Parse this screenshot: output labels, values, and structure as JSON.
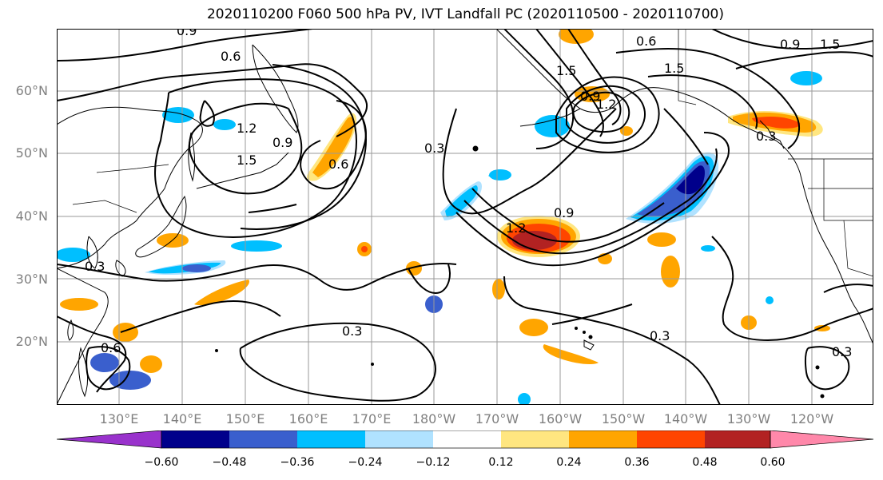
{
  "title": "2020110200 F060 500 hPa PV, IVT Landfall PC (2020110500 - 2020110700)",
  "lat_labels": [
    "60°N",
    "50°N",
    "40°N",
    "30°N",
    "20°N"
  ],
  "lon_labels": [
    "130°E",
    "140°E",
    "150°E",
    "160°E",
    "170°E",
    "180°W",
    "170°W",
    "160°W",
    "150°W",
    "140°W",
    "130°W",
    "120°W"
  ],
  "contour_labels": [
    "0.9",
    "0.6",
    "0.6",
    "1.5",
    "0.9",
    "1.5",
    "1.2",
    "0.9",
    "1.5",
    "0.6",
    "0.3",
    "1.2",
    "0.9",
    "0.3",
    "0.3",
    "0.6",
    "0.3",
    "0.3",
    "1.5",
    "1.2",
    "0.9",
    "0.3"
  ],
  "colorbar": {
    "ticks": [
      "−0.60",
      "−0.48",
      "−0.36",
      "−0.24",
      "−0.12",
      "0.12",
      "0.24",
      "0.36",
      "0.48",
      "0.60"
    ],
    "colors": [
      "#9932cc",
      "#00008b",
      "#3a5fcd",
      "#00bfff",
      "#b0e2ff",
      "#ffffff",
      "#ffe680",
      "#ffa500",
      "#ff4500",
      "#b22222",
      "#ff88aa"
    ]
  }
}
